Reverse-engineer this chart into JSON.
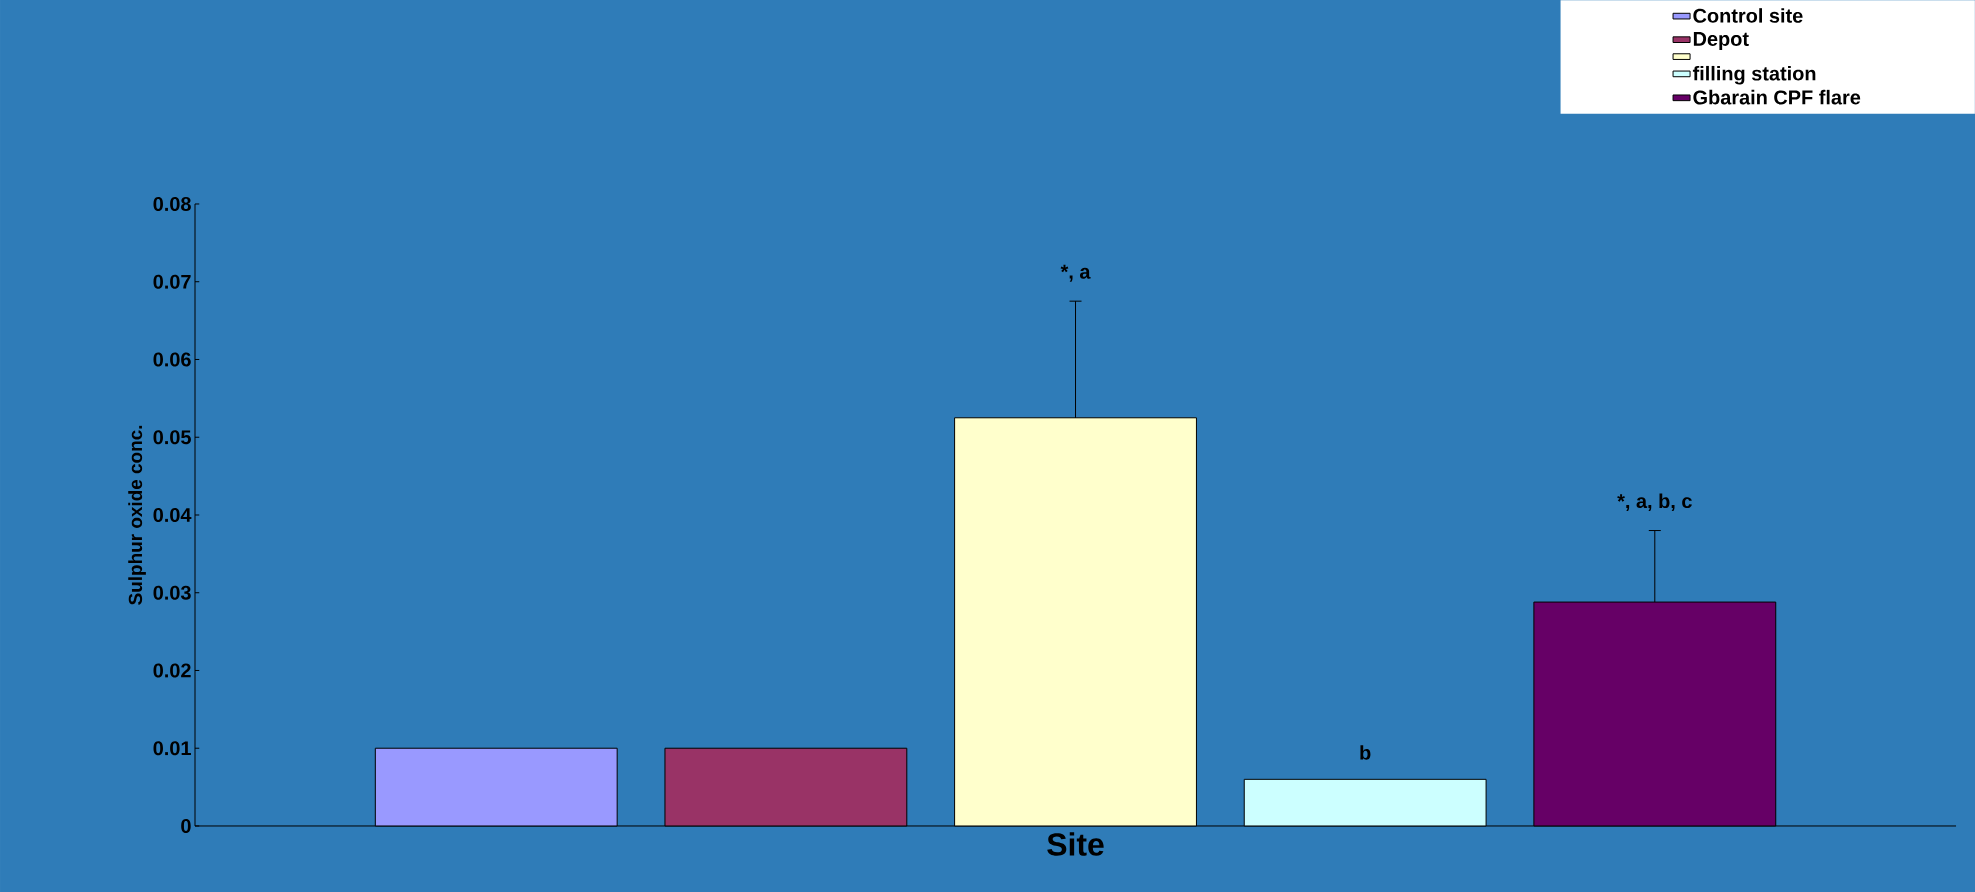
{
  "chart_data": {
    "type": "bar",
    "xlabel": "Site",
    "ylabel": "Sulphur oxide conc.",
    "categories": [
      null,
      null,
      null,
      null,
      null
    ],
    "series": [
      {
        "name": "Control site",
        "color": "#9999ff",
        "values": [
          0.01,
          null,
          null,
          null,
          null
        ]
      },
      {
        "name": "Depot",
        "color": "#993366",
        "values": [
          null,
          0.01,
          null,
          null,
          null
        ]
      },
      {
        "color": "#ffffcc",
        "values": [
          null,
          null,
          0.0525,
          null,
          null
        ],
        "errors": [
          null,
          null,
          [
            0.0525,
            0.0675
          ],
          null,
          null
        ]
      },
      {
        "name": "filling station",
        "color": "#ccffff",
        "values": [
          null,
          null,
          null,
          0.006,
          null
        ]
      },
      {
        "name": "Gbarain CPF flare",
        "color": "#660066",
        "values": [
          null,
          null,
          null,
          null,
          0.0288
        ],
        "errors": [
          null,
          null,
          null,
          null,
          [
            0.0288,
            0.038
          ]
        ]
      }
    ],
    "ylim": [
      0,
      0.08
    ],
    "yticks": [
      0,
      0.01,
      0.02,
      0.03,
      0.04,
      0.05,
      0.06,
      0.07,
      0.08
    ],
    "annotations": [
      "*, a",
      "b",
      "*, a, b, c"
    ],
    "legend": "top right",
    "tick_labels": "y",
    "grid": false
  }
}
